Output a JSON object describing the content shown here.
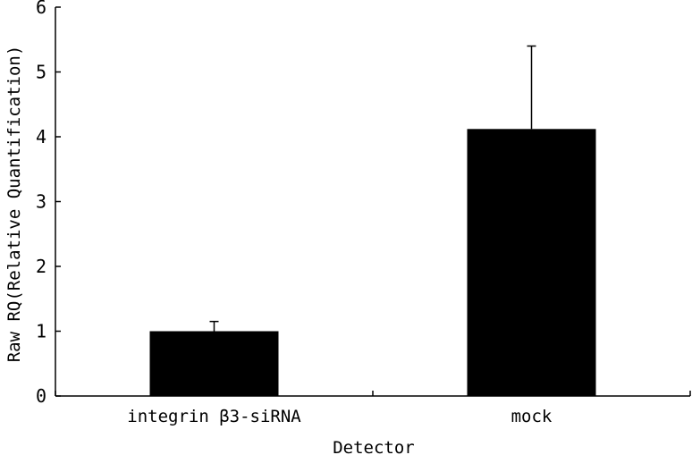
{
  "chart_data": {
    "type": "bar",
    "title": "",
    "xlabel": "Detector",
    "ylabel": "Raw RQ(Relative Quantification)",
    "categories": [
      "integrin β3-siRNA",
      "mock"
    ],
    "values": [
      1.0,
      4.12
    ],
    "error_upper": [
      0.15,
      1.28
    ],
    "ylim": [
      0,
      6
    ],
    "yticks": [
      "0",
      "1",
      "2",
      "3",
      "4",
      "5",
      "6"
    ],
    "bar_color": "#000000",
    "grid": false,
    "legend": "none"
  }
}
